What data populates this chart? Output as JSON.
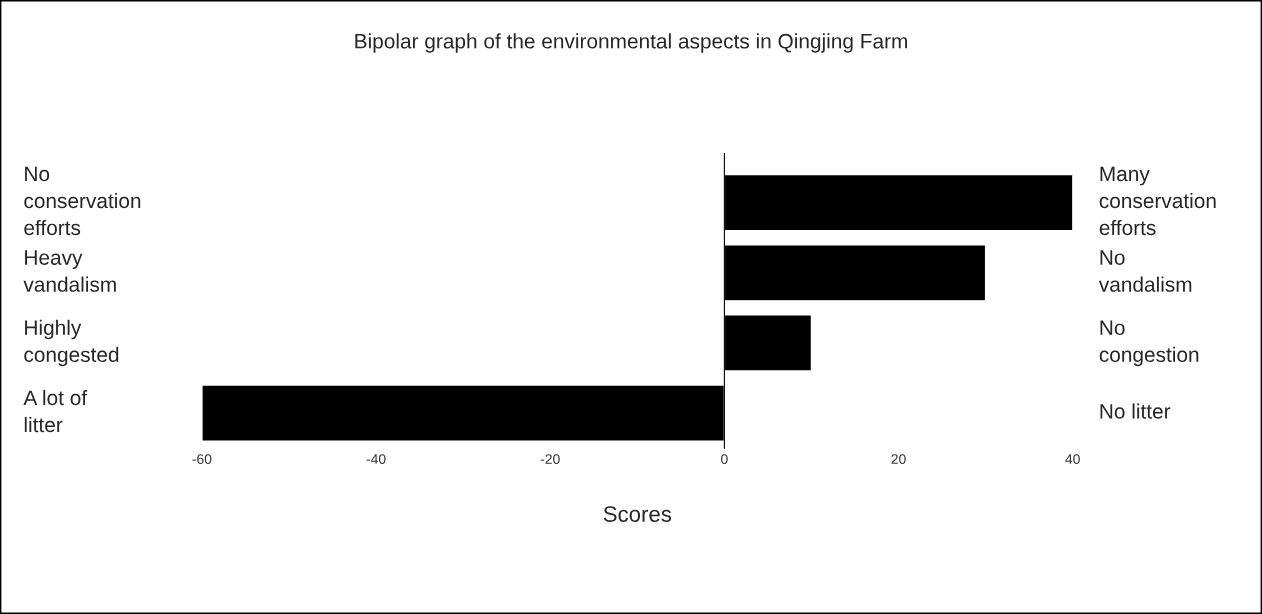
{
  "chart_data": {
    "type": "bar",
    "orientation": "horizontal",
    "title": "Bipolar graph of the environmental aspects in Qingjing Farm",
    "xlabel": "Scores",
    "categories": [
      "No\nconservation\nefforts",
      "Heavy\nvandalism",
      "Highly\ncongested",
      "A lot of\nlitter"
    ],
    "y2_categories": [
      "Many\nconservation\nefforts",
      "No\nvandalism",
      "No\ncongestion",
      "No litter"
    ],
    "values": [
      40,
      30,
      10,
      -60
    ],
    "color": "#000000",
    "xlim": [
      -60,
      40
    ],
    "xticks": [
      -60,
      -40,
      -20,
      0,
      20,
      40
    ]
  }
}
